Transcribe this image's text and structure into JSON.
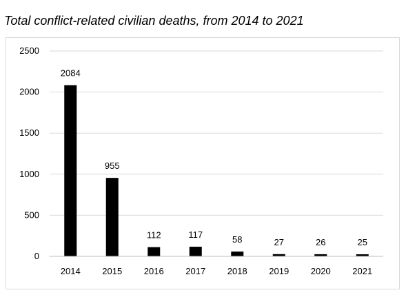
{
  "chart_data": {
    "type": "bar",
    "title": "Total conflict-related civilian deaths, from 2014 to 2021",
    "categories": [
      "2014",
      "2015",
      "2016",
      "2017",
      "2018",
      "2019",
      "2020",
      "2021"
    ],
    "values": [
      2084,
      955,
      112,
      117,
      58,
      27,
      26,
      25
    ],
    "data_labels": [
      "2084",
      "955",
      "112",
      "117",
      "58",
      "27",
      "26",
      "25"
    ],
    "ylim": [
      0,
      2500
    ],
    "yticks": [
      "0",
      "500",
      "1000",
      "1500",
      "2000",
      "2500"
    ],
    "ytick_values": [
      0,
      500,
      1000,
      1500,
      2000,
      2500
    ],
    "grid": true,
    "legend": "none",
    "bar_color": "#000000"
  }
}
